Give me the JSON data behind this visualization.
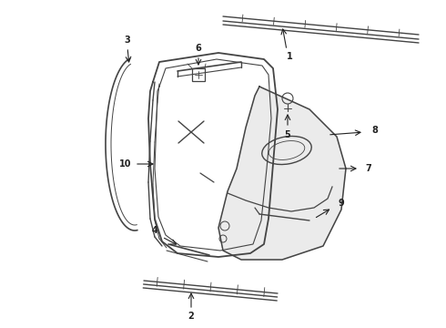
{
  "background_color": "#ffffff",
  "line_color": "#444444",
  "text_color": "#222222",
  "fig_width": 4.9,
  "fig_height": 3.6,
  "dpi": 100
}
